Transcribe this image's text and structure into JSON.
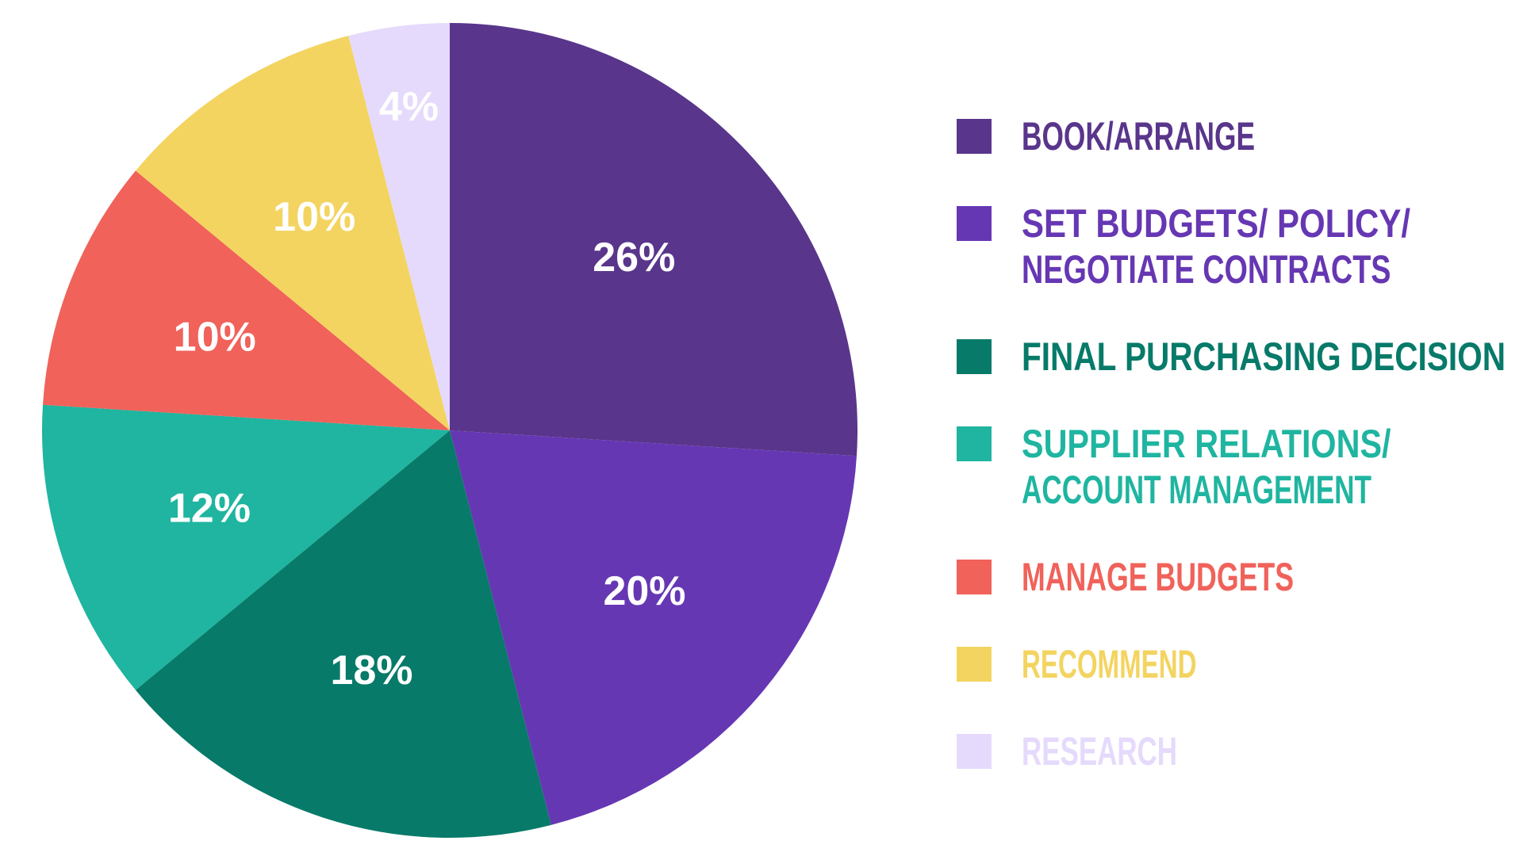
{
  "chart_data": {
    "type": "pie",
    "start_angle_deg": 0,
    "direction": "clockwise",
    "legend_position": "right",
    "slices": [
      {
        "label_lines": [
          "BOOK/ARRANGE"
        ],
        "value": 26,
        "display": "26%",
        "color": "#59358b"
      },
      {
        "label_lines": [
          "SET BUDGETS/ POLICY/",
          "NEGOTIATE CONTRACTS"
        ],
        "value": 20,
        "display": "20%",
        "color": "#6637b3"
      },
      {
        "label_lines": [
          "FINAL PURCHASING DECISION"
        ],
        "value": 18,
        "display": "18%",
        "color": "#077a69"
      },
      {
        "label_lines": [
          "SUPPLIER RELATIONS/",
          "ACCOUNT MANAGEMENT"
        ],
        "value": 12,
        "display": "12%",
        "color": "#1fb5a0"
      },
      {
        "label_lines": [
          "MANAGE BUDGETS"
        ],
        "value": 10,
        "display": "10%",
        "color": "#f0625a"
      },
      {
        "label_lines": [
          "RECOMMEND"
        ],
        "value": 10,
        "display": "10%",
        "color": "#f3d460"
      },
      {
        "label_lines": [
          "RESEARCH"
        ],
        "value": 4,
        "display": "4%",
        "color": "#e5dafc"
      }
    ]
  }
}
